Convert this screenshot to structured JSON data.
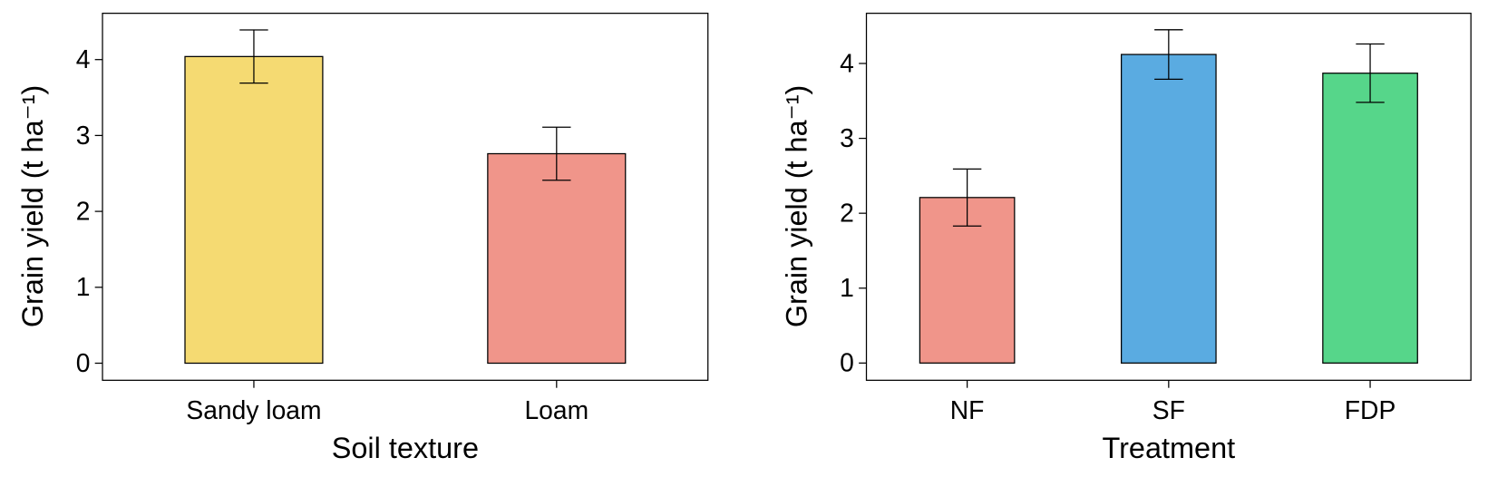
{
  "chart_data": [
    {
      "type": "bar",
      "x_label": "Soil texture",
      "y_label": "Grain yield (t ha⁻¹)",
      "categories": [
        "Sandy loam",
        "Loam"
      ],
      "values": [
        4.04,
        2.76
      ],
      "errors": [
        0.35,
        0.35
      ],
      "colors": [
        "#f5da72",
        "#f0958a"
      ],
      "ylim": [
        -0.225,
        4.61
      ],
      "yticks": [
        0,
        1,
        2,
        3,
        4
      ]
    },
    {
      "type": "bar",
      "x_label": "Treatment",
      "y_label": "Grain yield (t ha⁻¹)",
      "categories": [
        "NF",
        "SF",
        "FDP"
      ],
      "values": [
        2.21,
        4.12,
        3.87
      ],
      "errors": [
        0.38,
        0.33,
        0.39
      ],
      "colors": [
        "#f0958a",
        "#5aabe1",
        "#56d68a"
      ],
      "ylim": [
        -0.23,
        4.67
      ],
      "yticks": [
        0,
        1,
        2,
        3,
        4
      ]
    }
  ]
}
